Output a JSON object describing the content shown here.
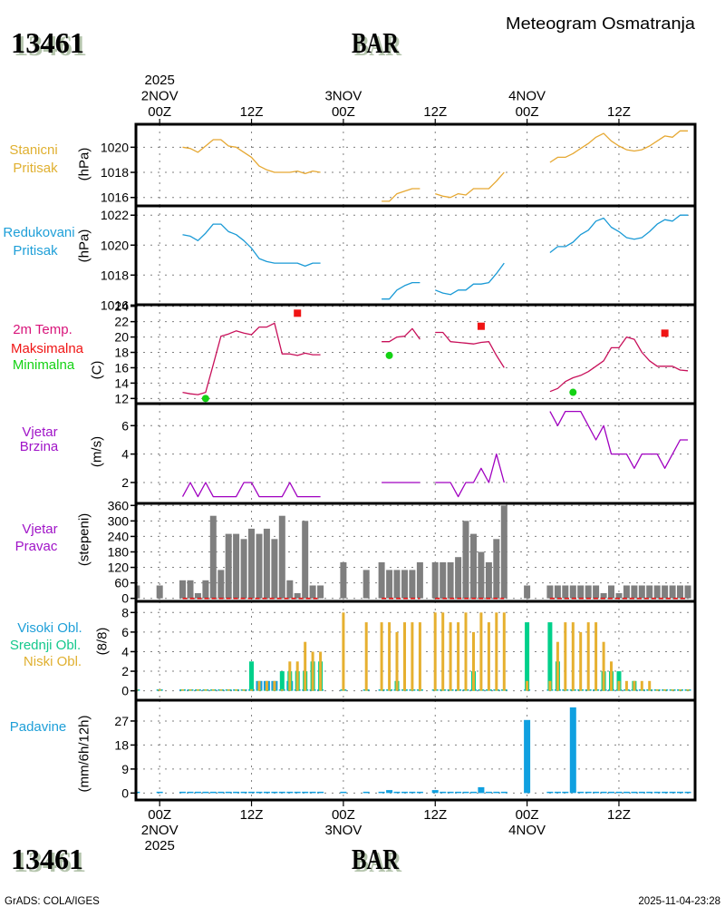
{
  "header": {
    "station_id": "13461",
    "station_name": "BAR",
    "title": "Meteogram Osmatranja"
  },
  "footer": {
    "station_id": "13461",
    "station_name": "BAR",
    "software": "GrADS: COLA/IGES",
    "timestamp": "2025-11-04-23:28"
  },
  "chart_data": {
    "type": "line",
    "title": "Meteogram Osmatranja",
    "station": "13461 BAR",
    "x_unit": "hours since 2025-11-02 00Z",
    "x_range_hours": [
      -3.1,
      69.95
    ],
    "grid": true,
    "time_axis": {
      "ticks": [
        {
          "hour": 0,
          "top": [
            "2025",
            "2NOV",
            "00Z"
          ],
          "bottom": [
            "00Z",
            "2NOV",
            "2025"
          ]
        },
        {
          "hour": 12,
          "top": [
            "12Z"
          ],
          "bottom": [
            "12Z"
          ]
        },
        {
          "hour": 24,
          "top": [
            "3NOV",
            "00Z"
          ],
          "bottom": [
            "00Z",
            "3NOV"
          ]
        },
        {
          "hour": 36,
          "top": [
            "12Z"
          ],
          "bottom": [
            "12Z"
          ]
        },
        {
          "hour": 48,
          "top": [
            "4NOV",
            "00Z"
          ],
          "bottom": [
            "00Z",
            "4NOV"
          ]
        },
        {
          "hour": 60,
          "top": [
            "12Z"
          ],
          "bottom": [
            "12Z"
          ]
        }
      ]
    },
    "obs_hours": [
      -3,
      0,
      3,
      4,
      5,
      6,
      7,
      8,
      9,
      10,
      11,
      12,
      13,
      14,
      15,
      16,
      17,
      18,
      19,
      20,
      21,
      24,
      27,
      29,
      30,
      31,
      32,
      33,
      34,
      36,
      37,
      38,
      39,
      40,
      41,
      42,
      43,
      44,
      45,
      48,
      51,
      52,
      53,
      54,
      55,
      56,
      57,
      58,
      59,
      60,
      61,
      62,
      63,
      64,
      65,
      66,
      67,
      68,
      69
    ],
    "panels": [
      {
        "id": "station-pressure",
        "labels": [
          {
            "text": "Stanicni",
            "color": "#e0b030"
          },
          {
            "text": "Pritisak",
            "color": "#e0b030"
          }
        ],
        "unit": "(hPa)",
        "ylim": [
          1015.33,
          1021.83
        ],
        "yticks": [
          1016,
          1018,
          1020
        ],
        "series": [
          {
            "id": "station-pressure",
            "name": "Stanicni Pritisak",
            "kind": "line",
            "color": "#e6a832",
            "values": [
              null,
              null,
              1020.0,
              1019.9,
              1019.6,
              1020.1,
              1020.6,
              1020.6,
              1020.1,
              1020.0,
              1019.6,
              1019.2,
              1018.5,
              1018.2,
              1018.0,
              1018.0,
              1018.0,
              1018.1,
              1017.9,
              1018.1,
              1018.0,
              null,
              null,
              1015.7,
              1015.7,
              1016.3,
              1016.5,
              1016.7,
              1016.7,
              1016.3,
              1016.1,
              1016.0,
              1016.3,
              1016.2,
              1016.7,
              1016.7,
              1016.7,
              1017.3,
              1018.0,
              null,
              1018.8,
              1019.2,
              1019.2,
              1019.5,
              1019.9,
              1020.3,
              1020.8,
              1021.1,
              1020.5,
              1020.1,
              1019.8,
              1019.7,
              1019.8,
              1020.1,
              1020.5,
              1020.9,
              1020.8,
              1021.3,
              1021.3
            ]
          }
        ]
      },
      {
        "id": "reduced-pressure",
        "labels": [
          {
            "text": "Redukovani",
            "color": "#1e9fd8"
          },
          {
            "text": "Pritisak",
            "color": "#1e9fd8"
          }
        ],
        "unit": "(hPa)",
        "ylim": [
          1016.02,
          1022.62
        ],
        "yticks": [
          1016,
          1018,
          1020,
          1022
        ],
        "series": [
          {
            "id": "reduced-pressure",
            "name": "Redukovani Pritisak",
            "kind": "line",
            "color": "#1a9ad6",
            "values": [
              null,
              null,
              1020.7,
              1020.6,
              1020.3,
              1020.8,
              1021.4,
              1021.4,
              1020.9,
              1020.7,
              1020.3,
              1019.8,
              1019.1,
              1018.9,
              1018.8,
              1018.8,
              1018.8,
              1018.8,
              1018.6,
              1018.8,
              1018.8,
              null,
              null,
              1016.4,
              1016.4,
              1017.0,
              1017.3,
              1017.5,
              1017.5,
              1017.0,
              1016.8,
              1016.7,
              1017.0,
              1017.0,
              1017.4,
              1017.4,
              1017.5,
              1018.1,
              1018.8,
              null,
              1019.5,
              1019.9,
              1019.9,
              1020.2,
              1020.7,
              1021.0,
              1021.6,
              1021.8,
              1021.2,
              1020.9,
              1020.5,
              1020.4,
              1020.5,
              1020.9,
              1021.4,
              1021.7,
              1021.6,
              1022.0,
              1022.0
            ]
          }
        ]
      },
      {
        "id": "temperature",
        "labels": [
          {
            "text": "2m Temp.",
            "color": "#d8147a"
          },
          {
            "text": "Maksimalna",
            "color": "#f01414"
          },
          {
            "text": "Minimalna",
            "color": "#14d214"
          }
        ],
        "unit": "(C)",
        "ylim": [
          11.33,
          24.2
        ],
        "yticks": [
          12,
          14,
          16,
          18,
          20,
          22,
          24
        ],
        "series": [
          {
            "id": "temperature",
            "name": "2m Temp.",
            "kind": "line",
            "color": "#c8105a",
            "values": [
              null,
              null,
              12.8,
              12.6,
              12.5,
              12.8,
              16.4,
              20.1,
              20.4,
              20.8,
              20.5,
              20.3,
              21.3,
              21.3,
              21.8,
              17.8,
              17.8,
              17.6,
              17.9,
              17.7,
              17.7,
              null,
              null,
              19.4,
              19.4,
              20.0,
              20.1,
              21.1,
              19.7,
              20.6,
              20.6,
              19.4,
              19.3,
              19.2,
              19.1,
              19.3,
              19.4,
              17.6,
              16.0,
              null,
              12.9,
              13.3,
              14.2,
              14.7,
              15.0,
              15.5,
              16.2,
              16.9,
              18.6,
              18.6,
              20.0,
              19.7,
              18.0,
              16.9,
              16.2,
              16.2,
              16.2,
              15.7,
              15.6
            ]
          },
          {
            "id": "temp-max",
            "name": "Maksimalna",
            "kind": "square",
            "color": "#f01414",
            "points": [
              {
                "hour": 18,
                "value": 23.1
              },
              {
                "hour": 42,
                "value": 21.4
              },
              {
                "hour": 66,
                "value": 20.5
              }
            ]
          },
          {
            "id": "temp-min",
            "name": "Minimalna",
            "kind": "circle",
            "color": "#14d214",
            "points": [
              {
                "hour": 6,
                "value": 12.0
              },
              {
                "hour": 30,
                "value": 17.6
              },
              {
                "hour": 54,
                "value": 12.8
              }
            ]
          }
        ]
      },
      {
        "id": "wind-speed",
        "labels": [
          {
            "text": "Vjetar",
            "color": "#a014c8"
          },
          {
            "text": "Brzina",
            "color": "#a014c8"
          }
        ],
        "unit": "(m/s)",
        "ylim": [
          0.53,
          7.55
        ],
        "yticks": [
          2,
          4,
          6
        ],
        "series": [
          {
            "id": "wind-speed",
            "name": "Vjetar Brzina",
            "kind": "line",
            "color": "#a000c0",
            "values": [
              null,
              null,
              1,
              2,
              1,
              2,
              1,
              1,
              1,
              1,
              2,
              2,
              1,
              1,
              1,
              1,
              2,
              1,
              1,
              1,
              1,
              null,
              null,
              2,
              2,
              2,
              2,
              2,
              2,
              2,
              2,
              2,
              1,
              2,
              2,
              3,
              2,
              4,
              2,
              null,
              7,
              6,
              7,
              7,
              7,
              6,
              5,
              6,
              4,
              4,
              4,
              3,
              4,
              4,
              4,
              3,
              4,
              5,
              5
            ]
          }
        ]
      },
      {
        "id": "wind-direction",
        "labels": [
          {
            "text": "Vjetar",
            "color": "#a014c8"
          },
          {
            "text": "Pravac",
            "color": "#a014c8"
          }
        ],
        "unit": "(stepeni)",
        "ylim": [
          -11.6,
          368
        ],
        "yticks": [
          0,
          60,
          120,
          180,
          240,
          300,
          360
        ],
        "baseline_marker": {
          "color": "#e00000"
        },
        "series": [
          {
            "id": "wind-direction",
            "name": "Vjetar Pravac",
            "kind": "bar",
            "color": "#7f7f7f",
            "values": [
              50,
              50,
              70,
              70,
              20,
              70,
              320,
              110,
              250,
              250,
              230,
              270,
              250,
              270,
              230,
              320,
              70,
              20,
              300,
              50,
              50,
              140,
              110,
              140,
              110,
              110,
              110,
              110,
              140,
              140,
              140,
              140,
              160,
              300,
              250,
              180,
              140,
              230,
              360,
              50,
              50,
              50,
              50,
              50,
              50,
              50,
              50,
              20,
              50,
              20,
              50,
              50,
              50,
              50,
              50,
              50,
              50,
              50,
              50
            ]
          }
        ]
      },
      {
        "id": "clouds",
        "labels": [
          {
            "text": "Visoki Obl.",
            "color": "#1e9fd8"
          },
          {
            "text": "Srednji Obl.",
            "color": "#14c88c"
          },
          {
            "text": "Niski Obl.",
            "color": "#e0b030"
          }
        ],
        "unit": "(8/8)",
        "ylim": [
          -0.96,
          9.14
        ],
        "yticks": [
          0,
          2,
          4,
          6,
          8
        ],
        "series": [
          {
            "id": "clouds-high",
            "name": "Visoki Obl.",
            "kind": "bar",
            "color": "#14a0e0",
            "values": [
              0,
              0,
              0,
              0,
              0,
              0,
              0,
              0,
              0,
              0,
              0,
              0,
              1,
              1,
              1,
              0,
              1,
              0,
              0,
              0,
              0,
              0,
              0,
              0,
              0,
              0,
              0,
              0,
              0,
              0,
              0,
              0,
              0,
              0,
              0,
              0,
              0,
              0,
              0,
              0,
              0,
              0,
              0,
              0,
              0,
              0,
              0,
              0,
              0,
              0,
              0,
              0,
              0,
              0,
              0,
              0,
              0,
              0,
              0
            ]
          },
          {
            "id": "clouds-mid",
            "name": "Srednji Obl.",
            "kind": "bar",
            "color": "#00d08a",
            "values": [
              0,
              0,
              0,
              0,
              0,
              0,
              0,
              0,
              0,
              0,
              0,
              3,
              0,
              0,
              0,
              2,
              2,
              2,
              2,
              3,
              3,
              0,
              0,
              0,
              0,
              1,
              0,
              0,
              0,
              0,
              0,
              0,
              0,
              0,
              2,
              0,
              0,
              0,
              0,
              7,
              7,
              3,
              0,
              0,
              0,
              0,
              0,
              2,
              2,
              2,
              0,
              1,
              0,
              0,
              0,
              0,
              0,
              0,
              0
            ]
          },
          {
            "id": "clouds-low",
            "name": "Niski Obl.",
            "kind": "bar",
            "color": "#e6b030",
            "values": [
              0,
              0,
              0,
              0,
              0,
              0,
              0,
              0,
              0,
              0,
              0,
              0,
              1,
              1,
              1,
              0,
              3,
              3,
              5,
              4,
              4,
              8,
              7,
              7,
              7,
              6,
              7,
              7,
              7,
              8,
              8,
              7,
              7,
              8,
              6,
              8,
              7,
              8,
              8,
              1,
              1,
              5,
              7,
              7,
              6,
              7,
              7,
              5,
              3,
              1,
              1,
              1,
              1,
              1,
              0,
              0,
              0,
              0,
              0
            ]
          }
        ]
      },
      {
        "id": "precipitation",
        "labels": [
          {
            "text": "Padavine",
            "color": "#1e9fd8"
          }
        ],
        "unit": "(mm/6h/12h)",
        "ylim": [
          -2.6,
          34.8
        ],
        "yticks": [
          0,
          9,
          18,
          27
        ],
        "series": [
          {
            "id": "precipitation",
            "name": "Padavine",
            "kind": "bar",
            "color": "#10a0e0",
            "values": [
              0,
              0,
              0,
              0,
              0,
              0,
              0,
              0,
              0,
              0,
              0,
              0,
              0,
              0,
              0,
              0,
              0,
              0,
              0,
              0,
              0,
              0,
              0,
              0,
              1.1,
              0,
              0,
              0,
              0,
              1.1,
              0,
              0,
              0,
              0,
              0,
              2.2,
              0,
              0,
              0,
              27.4,
              0,
              0,
              0,
              32.1,
              0,
              0,
              0,
              0,
              0,
              0,
              0,
              0,
              0,
              0,
              0,
              0,
              0,
              0,
              0
            ]
          }
        ]
      }
    ]
  }
}
